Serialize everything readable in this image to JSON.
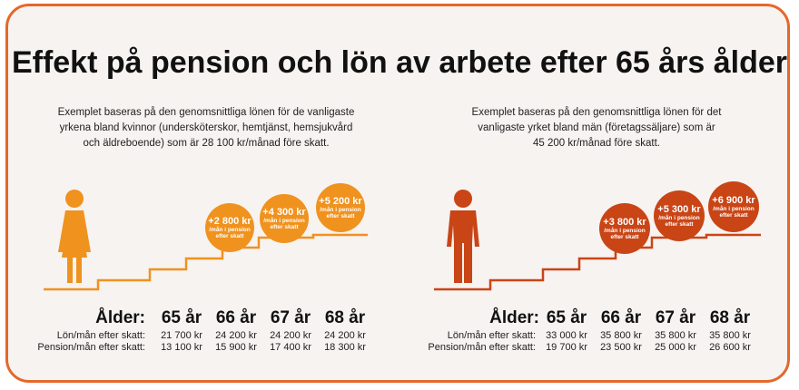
{
  "title": "Effekt på pension och lön av arbete efter 65 års ålder",
  "left": {
    "description_lines": [
      "Exemplet baseras på den genomsnittliga lönen för de vanligaste",
      "yrkena bland kvinnor (undersköterskor, hemtjänst, hemsjukvård",
      "och äldreboende) som är 28 100 kr/månad före skatt."
    ],
    "bubbles": [
      {
        "amount": "+2 800 kr",
        "sub1": "/mån i pension",
        "sub2": "efter skatt"
      },
      {
        "amount": "+4 300 kr",
        "sub1": "/mån i pension",
        "sub2": "efter skatt"
      },
      {
        "amount": "+5 200 kr",
        "sub1": "/mån i pension",
        "sub2": "efter skatt"
      }
    ],
    "age_label": "Ålder:",
    "ages": [
      "65 år",
      "66 år",
      "67 år",
      "68 år"
    ],
    "row1_label": "Lön/mån efter skatt:",
    "row1": [
      "21 700 kr",
      "24 200 kr",
      "24 200 kr",
      "24 200 kr"
    ],
    "row2_label": "Pension/mån efter skatt:",
    "row2": [
      "13 100 kr",
      "15 900 kr",
      "17 400 kr",
      "18 300 kr"
    ],
    "color": "#f0921e",
    "figure_icon": "woman-icon"
  },
  "right": {
    "description_lines": [
      "Exemplet baseras på den genomsnittliga lönen för det",
      "vanligaste yrket bland män (företagssäljare) som är",
      "45 200 kr/månad före skatt."
    ],
    "bubbles": [
      {
        "amount": "+3 800 kr",
        "sub1": "/mån i pension",
        "sub2": "efter skatt"
      },
      {
        "amount": "+5 300 kr",
        "sub1": "/mån i pension",
        "sub2": "efter skatt"
      },
      {
        "amount": "+6 900 kr",
        "sub1": "/mån i pension",
        "sub2": "efter skatt"
      }
    ],
    "age_label": "Ålder:",
    "ages": [
      "65 år",
      "66 år",
      "67 år",
      "68 år"
    ],
    "row1_label": "Lön/mån efter skatt:",
    "row1": [
      "33 000 kr",
      "35 800 kr",
      "35 800 kr",
      "35 800 kr"
    ],
    "row2_label": "Pension/mån efter skatt:",
    "row2": [
      "19 700 kr",
      "23 500 kr",
      "25 000 kr",
      "26 600 kr"
    ],
    "color": "#c94516",
    "figure_icon": "man-icon"
  }
}
